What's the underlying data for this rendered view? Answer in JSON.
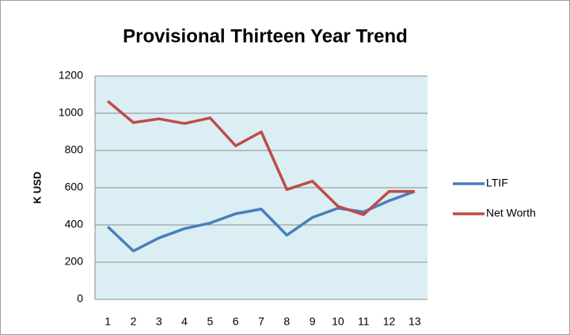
{
  "chart_data": {
    "type": "line",
    "title": "Provisional Thirteen Year Trend",
    "y_label": "K USD",
    "categories": [
      "1",
      "2",
      "3",
      "4",
      "5",
      "6",
      "7",
      "8",
      "9",
      "10",
      "11",
      "12",
      "13"
    ],
    "series": [
      {
        "name": "LTIF",
        "color": "#4a7ebb",
        "values": [
          390,
          260,
          330,
          380,
          410,
          460,
          485,
          345,
          440,
          490,
          470,
          530,
          580
        ]
      },
      {
        "name": "Net Worth",
        "color": "#be4b48",
        "values": [
          1065,
          950,
          970,
          945,
          975,
          825,
          900,
          590,
          635,
          500,
          455,
          580,
          580
        ]
      }
    ],
    "ylim": [
      0,
      1200
    ],
    "yticks": [
      0,
      200,
      400,
      600,
      800,
      1000,
      1200
    ],
    "grid": true,
    "legend": "right"
  }
}
